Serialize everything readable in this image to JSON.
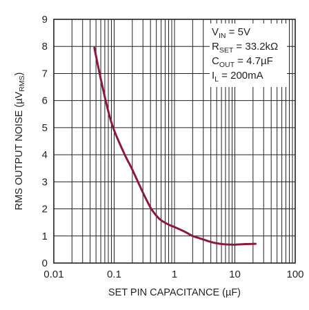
{
  "chart_data": {
    "type": "line",
    "x_scale": "log",
    "xlim": [
      0.01,
      100
    ],
    "ylim": [
      0,
      9
    ],
    "grid": true,
    "xlabel": "SET PIN CAPACITANCE (µF)",
    "ylabel": {
      "main": "RMS OUTPUT NOISE (µV",
      "sub": "RMS",
      "close": ")"
    },
    "x_ticks": [
      {
        "value": 0.01,
        "label": "0.01"
      },
      {
        "value": 0.1,
        "label": "0.1"
      },
      {
        "value": 1,
        "label": "1"
      },
      {
        "value": 10,
        "label": "10"
      },
      {
        "value": 100,
        "label": "100"
      }
    ],
    "y_ticks": [
      {
        "value": 0,
        "label": "0"
      },
      {
        "value": 1,
        "label": "1"
      },
      {
        "value": 2,
        "label": "2"
      },
      {
        "value": 3,
        "label": "3"
      },
      {
        "value": 4,
        "label": "4"
      },
      {
        "value": 5,
        "label": "5"
      },
      {
        "value": 6,
        "label": "6"
      },
      {
        "value": 7,
        "label": "7"
      },
      {
        "value": 8,
        "label": "8"
      },
      {
        "value": 9,
        "label": "9"
      }
    ],
    "legend_position": "top-right",
    "conditions": [
      {
        "main": "V",
        "sub": "IN",
        "rest": " = 5V"
      },
      {
        "main": "R",
        "sub": "SET",
        "rest": " = 33.2kΩ"
      },
      {
        "main": "C",
        "sub": "OUT",
        "rest": " = 4.7µF"
      },
      {
        "main": "I",
        "sub": "L",
        "rest": " = 200mA"
      }
    ],
    "series": [
      {
        "color": "#8b1a3a",
        "points": [
          [
            0.047,
            7.95
          ],
          [
            0.06,
            6.8
          ],
          [
            0.08,
            5.6
          ],
          [
            0.1,
            4.9
          ],
          [
            0.15,
            4.0
          ],
          [
            0.2,
            3.45
          ],
          [
            0.3,
            2.6
          ],
          [
            0.4,
            2.05
          ],
          [
            0.5,
            1.75
          ],
          [
            0.6,
            1.58
          ],
          [
            0.8,
            1.42
          ],
          [
            1.0,
            1.33
          ],
          [
            1.5,
            1.15
          ],
          [
            2.0,
            1.0
          ],
          [
            3.0,
            0.87
          ],
          [
            4.0,
            0.78
          ],
          [
            5.0,
            0.73
          ],
          [
            7.0,
            0.69
          ],
          [
            10.0,
            0.68
          ],
          [
            15.0,
            0.7
          ],
          [
            22.0,
            0.71
          ]
        ]
      }
    ]
  }
}
